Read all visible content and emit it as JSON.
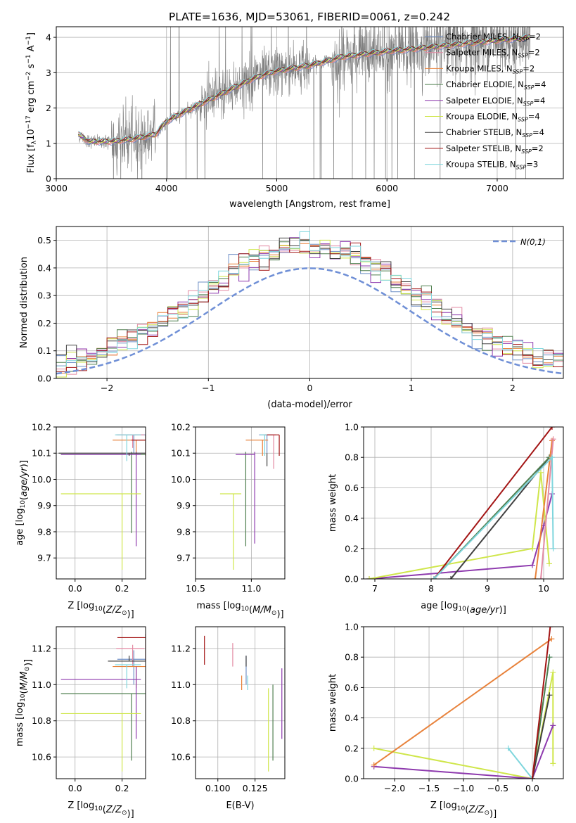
{
  "title": "PLATE=1636, MJD=53061, FIBERID=0061, z=0.242",
  "models": [
    {
      "label": "Chabrier MILES, N",
      "sub": "SSP",
      "eq": "=2",
      "color": "#6f8fc6"
    },
    {
      "label": "Salpeter MILES, N",
      "sub": "SSP",
      "eq": "=2",
      "color": "#e38aa3"
    },
    {
      "label": "Kroupa MILES, N",
      "sub": "SSP",
      "eq": "=2",
      "color": "#e8823b"
    },
    {
      "label": "Chabrier ELODIE, N",
      "sub": "SSP",
      "eq": "=4",
      "color": "#4f7f4f"
    },
    {
      "label": "Salpeter ELODIE, N",
      "sub": "SSP",
      "eq": "=4",
      "color": "#8e3aae"
    },
    {
      "label": "Kroupa ELODIE, N",
      "sub": "SSP",
      "eq": "=4",
      "color": "#cfe64a"
    },
    {
      "label": "Chabrier STELIB, N",
      "sub": "SSP",
      "eq": "=4",
      "color": "#404040"
    },
    {
      "label": "Salpeter STELIB, N",
      "sub": "SSP",
      "eq": "=2",
      "color": "#a31515"
    },
    {
      "label": "Kroupa STELIB, N",
      "sub": "SSP",
      "eq": "=3",
      "color": "#7fd6dd"
    }
  ],
  "chart_data": [
    {
      "id": "spectrum",
      "type": "line",
      "xlabel": "wavelength [Angstrom, rest frame]",
      "ylabel": "Flux [f_λ 10^-17 erg cm^-2 s^-1 A^-1]",
      "xlim": [
        3000,
        7600
      ],
      "ylim": [
        0,
        4.3
      ],
      "xticks": [
        3000,
        4000,
        5000,
        6000,
        7000
      ],
      "yticks": [
        0,
        1,
        2,
        3,
        4
      ],
      "data_range": [
        3200,
        7300
      ],
      "trend": [
        [
          3200,
          1.25
        ],
        [
          3300,
          1.05
        ],
        [
          3500,
          1.05
        ],
        [
          3700,
          1.12
        ],
        [
          3900,
          1.25
        ],
        [
          4000,
          1.62
        ],
        [
          4200,
          1.95
        ],
        [
          4500,
          2.4
        ],
        [
          4800,
          2.85
        ],
        [
          5000,
          3.05
        ],
        [
          5300,
          3.2
        ],
        [
          5600,
          3.45
        ],
        [
          6000,
          3.6
        ],
        [
          6400,
          3.72
        ],
        [
          6800,
          3.85
        ],
        [
          7300,
          4.0
        ]
      ]
    },
    {
      "id": "residuals",
      "type": "histogram",
      "xlabel": "(data-model)/error",
      "ylabel": "Normed distribution",
      "xlim": [
        -2.5,
        2.5
      ],
      "ylim": [
        0,
        0.55
      ],
      "xticks": [
        -2,
        -1,
        0,
        1,
        2
      ],
      "yticks": [
        0.0,
        0.1,
        0.2,
        0.3,
        0.4,
        0.5
      ],
      "bin_width": 0.1,
      "normal_curve": {
        "label": "N(0,1)",
        "mean": 0,
        "sigma": 1,
        "color": "#6f8fd6"
      }
    },
    {
      "id": "age-vs-Z",
      "type": "errorbar",
      "xlabel": "Z [log10(Z/Zsun)]",
      "ylabel": "age [log10(age/yr)]",
      "xlim": [
        -0.08,
        0.3
      ],
      "ylim": [
        9.62,
        10.2
      ],
      "xticks": [
        0.0,
        0.2
      ],
      "yticks": [
        9.7,
        9.8,
        9.9,
        10.0,
        10.1,
        10.2
      ],
      "points": [
        {
          "model": 0,
          "x": 0.25,
          "xerr": [
            0.07,
            0.05
          ],
          "y": 10.17,
          "yerr": [
            0.07,
            0.0
          ]
        },
        {
          "model": 1,
          "x": 0.245,
          "xerr": [
            0.07,
            0.05
          ],
          "y": 10.17,
          "yerr": [
            0.05,
            0.0
          ]
        },
        {
          "model": 2,
          "x": 0.26,
          "xerr": [
            0.1,
            0.04
          ],
          "y": 10.15,
          "yerr": [
            0.06,
            0.0
          ]
        },
        {
          "model": 3,
          "x": 0.24,
          "xerr": [
            0.3,
            0.06
          ],
          "y": 10.095,
          "yerr": [
            0.3,
            0.01
          ]
        },
        {
          "model": 4,
          "x": 0.26,
          "xerr": [
            0.32,
            0.02
          ],
          "y": 10.095,
          "yerr": [
            0.35,
            0.01
          ]
        },
        {
          "model": 5,
          "x": 0.2,
          "xerr": [
            0.26,
            0.08
          ],
          "y": 9.945,
          "yerr": [
            0.29,
            0.0
          ]
        },
        {
          "model": 6,
          "x": 0.23,
          "xerr": [
            0.3,
            0.07
          ],
          "y": 10.1,
          "yerr": [
            0.01,
            0.0
          ]
        },
        {
          "model": 7,
          "x": 0.3,
          "xerr": [
            0.06,
            0.0
          ],
          "y": 10.15,
          "yerr": [
            0.06,
            0.02
          ]
        },
        {
          "model": 8,
          "x": 0.22,
          "xerr": [
            0.05,
            0.06
          ],
          "y": 10.17,
          "yerr": [
            0.1,
            0.0
          ]
        }
      ]
    },
    {
      "id": "age-vs-mass",
      "type": "errorbar",
      "xlabel": "mass [log10(M/Msun)]",
      "ylabel": "",
      "xlim": [
        10.5,
        11.3
      ],
      "ylim": [
        9.62,
        10.2
      ],
      "xticks": [
        10.5,
        11.0
      ],
      "yticks": [
        9.7,
        9.8,
        9.9,
        10.0,
        10.1,
        10.2
      ],
      "points": [
        {
          "model": 0,
          "x": 11.14,
          "xerr": [
            0.07,
            0.05
          ],
          "y": 10.17,
          "yerr": [
            0.07,
            0.0
          ]
        },
        {
          "model": 1,
          "x": 11.2,
          "xerr": [
            0.1,
            0.02
          ],
          "y": 10.17,
          "yerr": [
            0.13,
            0.0
          ]
        },
        {
          "model": 2,
          "x": 11.1,
          "xerr": [
            0.15,
            0.05
          ],
          "y": 10.15,
          "yerr": [
            0.06,
            0.0
          ]
        },
        {
          "model": 3,
          "x": 10.95,
          "xerr": [
            0.0,
            0.0
          ],
          "y": 10.105,
          "yerr": [
            0.36,
            0.0
          ]
        },
        {
          "model": 4,
          "x": 11.03,
          "xerr": [
            0.17,
            0.0
          ],
          "y": 10.095,
          "yerr": [
            0.34,
            0.01
          ]
        },
        {
          "model": 5,
          "x": 10.84,
          "xerr": [
            0.12,
            0.07
          ],
          "y": 9.945,
          "yerr": [
            0.29,
            0.0
          ]
        },
        {
          "model": 6,
          "x": 11.14,
          "xerr": [
            0.0,
            0.0
          ],
          "y": 10.1,
          "yerr": [
            0.05,
            0.0
          ]
        },
        {
          "model": 7,
          "x": 11.25,
          "xerr": [
            0.13,
            0.0
          ],
          "y": 10.17,
          "yerr": [
            0.08,
            0.0
          ]
        },
        {
          "model": 8,
          "x": 11.12,
          "xerr": [
            0.04,
            0.02
          ],
          "y": 10.17,
          "yerr": [
            0.08,
            0.0
          ]
        }
      ]
    },
    {
      "id": "weight-vs-age",
      "type": "line",
      "xlabel": "age [log10(age/yr)]",
      "ylabel": "mass weight",
      "xlim": [
        6.8,
        10.35
      ],
      "ylim": [
        0,
        1
      ],
      "xticks": [
        7,
        8,
        9,
        10
      ],
      "yticks": [
        0.0,
        0.2,
        0.4,
        0.6,
        0.8,
        1.0
      ],
      "series": [
        {
          "model": 4,
          "points": [
            [
              6.9,
              0.0
            ],
            [
              9.8,
              0.09
            ],
            [
              10.0,
              0.35
            ],
            [
              10.15,
              0.56
            ]
          ]
        },
        {
          "model": 5,
          "points": [
            [
              6.9,
              0.0
            ],
            [
              9.8,
              0.2
            ],
            [
              9.95,
              0.7
            ],
            [
              10.1,
              0.1
            ]
          ]
        },
        {
          "model": 6,
          "points": [
            [
              8.35,
              0.0
            ],
            [
              10.1,
              0.8
            ]
          ]
        },
        {
          "model": 3,
          "points": [
            [
              8.05,
              0.0
            ],
            [
              10.1,
              0.8
            ]
          ]
        },
        {
          "model": 2,
          "points": [
            [
              9.85,
              0.0
            ],
            [
              10.15,
              0.91
            ]
          ]
        },
        {
          "model": 1,
          "points": [
            [
              9.95,
              0.0
            ],
            [
              10.17,
              0.92
            ]
          ]
        },
        {
          "model": 7,
          "points": [
            [
              8.05,
              0.0
            ],
            [
              10.15,
              1.0
            ]
          ]
        },
        {
          "model": 8,
          "points": [
            [
              8.05,
              0.0
            ],
            [
              10.15,
              0.8
            ],
            [
              10.17,
              0.2
            ]
          ]
        }
      ]
    },
    {
      "id": "mass-vs-Z",
      "type": "errorbar",
      "xlabel": "Z [log10(Z/Zsun)]",
      "ylabel": "mass [log10(M/Msun)]",
      "xlim": [
        -0.08,
        0.3
      ],
      "ylim": [
        10.48,
        11.32
      ],
      "xticks": [
        0.0,
        0.2
      ],
      "yticks": [
        10.6,
        10.8,
        11.0,
        11.2
      ],
      "points": [
        {
          "model": 0,
          "x": 0.25,
          "xerr": [
            0.07,
            0.05
          ],
          "y": 11.14,
          "yerr": [
            0.14,
            0.05
          ]
        },
        {
          "model": 1,
          "x": 0.245,
          "xerr": [
            0.07,
            0.05
          ],
          "y": 11.2,
          "yerr": [
            0.1,
            0.02
          ]
        },
        {
          "model": 2,
          "x": 0.26,
          "xerr": [
            0.1,
            0.04
          ],
          "y": 11.1,
          "yerr": [
            0.12,
            0.0
          ]
        },
        {
          "model": 3,
          "x": 0.24,
          "xerr": [
            0.3,
            0.06
          ],
          "y": 10.95,
          "yerr": [
            0.37,
            0.0
          ]
        },
        {
          "model": 4,
          "x": 0.26,
          "xerr": [
            0.32,
            0.02
          ],
          "y": 11.03,
          "yerr": [
            0.33,
            0.07
          ]
        },
        {
          "model": 5,
          "x": 0.2,
          "xerr": [
            0.26,
            0.08
          ],
          "y": 10.84,
          "yerr": [
            0.32,
            0.0
          ]
        },
        {
          "model": 6,
          "x": 0.23,
          "xerr": [
            0.09,
            0.07
          ],
          "y": 11.13,
          "yerr": [
            0.0,
            0.03
          ]
        },
        {
          "model": 7,
          "x": 0.3,
          "xerr": [
            0.12,
            0.0
          ],
          "y": 11.26,
          "yerr": [
            0.13,
            0.02
          ]
        },
        {
          "model": 8,
          "x": 0.22,
          "xerr": [
            0.05,
            0.06
          ],
          "y": 11.11,
          "yerr": [
            0.13,
            0.0
          ]
        }
      ]
    },
    {
      "id": "mass-vs-EBV",
      "type": "errorbar",
      "xlabel": "E(B-V)",
      "ylabel": "",
      "xlim": [
        0.085,
        0.145
      ],
      "ylim": [
        10.48,
        11.32
      ],
      "xticks": [
        0.1,
        0.125
      ],
      "yticks": [
        10.6,
        10.8,
        11.0,
        11.2
      ],
      "points": [
        {
          "model": 0,
          "x": 0.119,
          "xerr": [
            0,
            0
          ],
          "y": 11.14,
          "yerr": [
            0.14,
            0.02
          ]
        },
        {
          "model": 1,
          "x": 0.11,
          "xerr": [
            0,
            0
          ],
          "y": 11.2,
          "yerr": [
            0.1,
            0.03
          ]
        },
        {
          "model": 2,
          "x": 0.116,
          "xerr": [
            0,
            0
          ],
          "y": 11.05,
          "yerr": [
            0.08,
            0.0
          ]
        },
        {
          "model": 3,
          "x": 0.137,
          "xerr": [
            0,
            0
          ],
          "y": 10.95,
          "yerr": [
            0.37,
            0.05
          ]
        },
        {
          "model": 4,
          "x": 0.143,
          "xerr": [
            0,
            0
          ],
          "y": 11.03,
          "yerr": [
            0.33,
            0.06
          ]
        },
        {
          "model": 5,
          "x": 0.134,
          "xerr": [
            0,
            0
          ],
          "y": 10.84,
          "yerr": [
            0.32,
            0.14
          ]
        },
        {
          "model": 6,
          "x": 0.119,
          "xerr": [
            0,
            0
          ],
          "y": 11.1,
          "yerr": [
            0.0,
            0.06
          ]
        },
        {
          "model": 7,
          "x": 0.091,
          "xerr": [
            0,
            0
          ],
          "y": 11.2,
          "yerr": [
            0.09,
            0.07
          ]
        },
        {
          "model": 8,
          "x": 0.12,
          "xerr": [
            0,
            0
          ],
          "y": 11.05,
          "yerr": [
            0.08,
            0.0
          ]
        }
      ]
    },
    {
      "id": "weight-vs-Z",
      "type": "line",
      "xlabel": "Z [log10(Z/Zsun)]",
      "ylabel": "mass weight",
      "xlim": [
        -2.45,
        0.45
      ],
      "ylim": [
        0,
        1
      ],
      "xticks": [
        -2.0,
        -1.5,
        -1.0,
        -0.5,
        0.0
      ],
      "yticks": [
        0.0,
        0.2,
        0.4,
        0.6,
        0.8,
        1.0
      ],
      "series": [
        {
          "model": 5,
          "points": [
            [
              -2.3,
              0.2
            ],
            [
              0.0,
              0.0
            ],
            [
              0.3,
              0.7
            ],
            [
              0.3,
              0.1
            ]
          ]
        },
        {
          "model": 4,
          "points": [
            [
              -2.3,
              0.08
            ],
            [
              0.0,
              0.0
            ],
            [
              0.3,
              0.35
            ]
          ]
        },
        {
          "model": 8,
          "points": [
            [
              -0.35,
              0.2
            ],
            [
              0.0,
              0.0
            ],
            [
              0.25,
              0.8
            ]
          ]
        },
        {
          "model": 3,
          "points": [
            [
              0.0,
              0.0
            ],
            [
              0.25,
              0.8
            ]
          ]
        },
        {
          "model": 6,
          "points": [
            [
              0.0,
              0.0
            ],
            [
              0.25,
              0.55
            ]
          ]
        },
        {
          "model": 2,
          "points": [
            [
              -2.3,
              0.09
            ],
            [
              0.28,
              0.92
            ]
          ]
        },
        {
          "model": 7,
          "points": [
            [
              0.0,
              0.0
            ],
            [
              0.26,
              1.0
            ]
          ]
        }
      ]
    }
  ]
}
